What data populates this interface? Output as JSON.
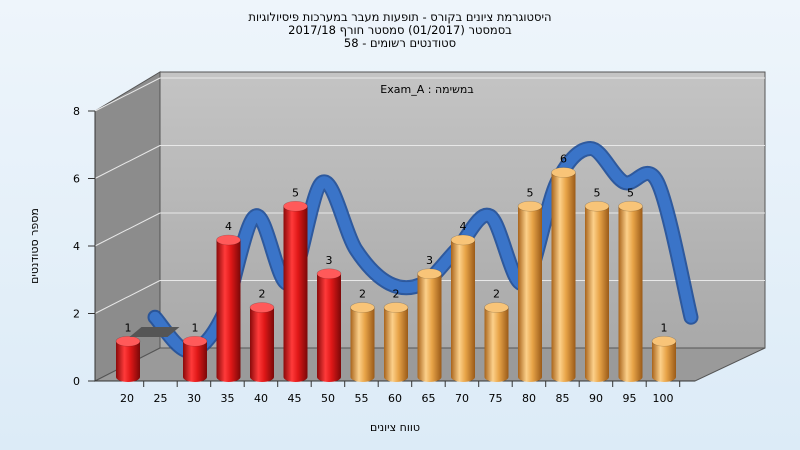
{
  "title": {
    "line1": "היסטוגרמת ציונים בקורס - תופעות מעבר במערכות פיסיולוגיות",
    "line2": "בסמסטר  (01/2017)  סמסטר חורף 2017/18",
    "line3": "סטודנטים רשומים - 58"
  },
  "colors": {
    "red": "#e01818",
    "orange": "#e8a448",
    "trend": "#3a74c8",
    "wall": "#b9b9b9",
    "side_wall": "#8a8a8a"
  },
  "chart_data": {
    "type": "bar",
    "annotation": "במשימה : Exam_A",
    "xlabel": "טווח ציונים",
    "ylabel": "מספר סטודנטים",
    "ylim": [
      0,
      8
    ],
    "yticks": [
      0,
      2,
      4,
      6,
      8
    ],
    "categories": [
      "20",
      "25",
      "30",
      "35",
      "40",
      "45",
      "50",
      "55",
      "60",
      "65",
      "70",
      "75",
      "80",
      "85",
      "90",
      "95",
      "100"
    ],
    "values": [
      1,
      0,
      1,
      4,
      2,
      5,
      3,
      2,
      2,
      3,
      4,
      2,
      5,
      6,
      5,
      5,
      1
    ],
    "bar_colors": [
      "red",
      "red",
      "red",
      "red",
      "red",
      "red",
      "red",
      "orange",
      "orange",
      "orange",
      "orange",
      "orange",
      "orange",
      "orange",
      "orange",
      "orange",
      "orange"
    ],
    "grid": true,
    "trend_line": true
  }
}
